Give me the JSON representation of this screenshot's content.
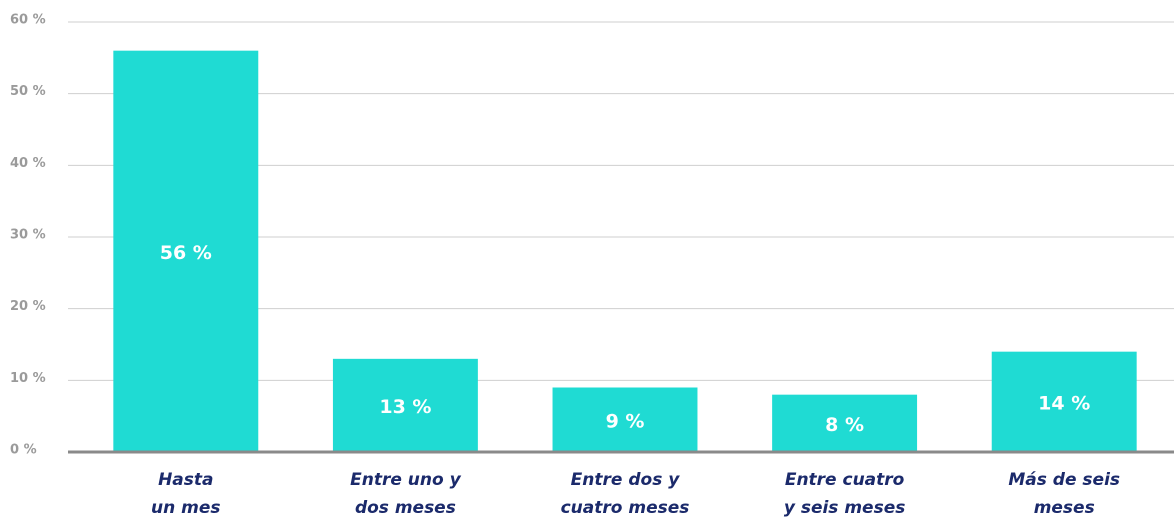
{
  "chart_data": {
    "type": "bar",
    "categories": [
      "Hasta\nun mes",
      "Entre uno y\ndos meses",
      "Entre dos y\ncuatro meses",
      "Entre cuatro\ny seis meses",
      "Más de seis\nmeses"
    ],
    "values": [
      56,
      13,
      9,
      8,
      14
    ],
    "value_labels": [
      "56 %",
      "13 %",
      "9 %",
      "8 %",
      "14 %"
    ],
    "color": "#1fdbd3",
    "ylim": [
      0,
      60
    ],
    "yticks": [
      {
        "value": 0,
        "label": "0 %"
      },
      {
        "value": 10,
        "label": "10 %"
      },
      {
        "value": 20,
        "label": "20 %"
      },
      {
        "value": 30,
        "label": "30 %"
      },
      {
        "value": 40,
        "label": "40 %"
      },
      {
        "value": 50,
        "label": "50 %"
      },
      {
        "value": 60,
        "label": "60 %"
      }
    ],
    "grid": true
  }
}
